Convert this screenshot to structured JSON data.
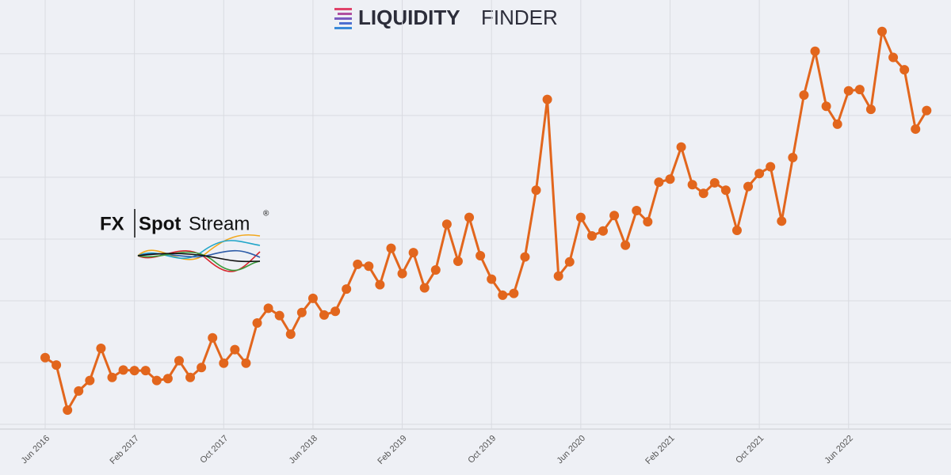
{
  "brand": {
    "bold": "LIQUIDITY",
    "light": "FINDER"
  },
  "logo": {
    "prefix": "FX",
    "bold": "Spot",
    "light": "Stream",
    "mark": "®"
  },
  "chart_data": {
    "type": "line",
    "color": "#e2661d",
    "grid": true,
    "categories": [
      "Jun 2016",
      null,
      null,
      null,
      null,
      null,
      null,
      null,
      "Feb 2017",
      null,
      null,
      null,
      null,
      null,
      null,
      null,
      "Oct 2017",
      null,
      null,
      null,
      null,
      null,
      null,
      null,
      "Jun 2018",
      null,
      null,
      null,
      null,
      null,
      null,
      null,
      "Feb 2019",
      null,
      null,
      null,
      null,
      null,
      null,
      null,
      "Oct 2019",
      null,
      null,
      null,
      null,
      null,
      null,
      null,
      "Jun 2020",
      null,
      null,
      null,
      null,
      null,
      null,
      null,
      "Feb 2021",
      null,
      null,
      null,
      null,
      null,
      null,
      null,
      "Oct 2021",
      null,
      null,
      null,
      null,
      null,
      null,
      null,
      "Jun 2022",
      null,
      null,
      null,
      null,
      null,
      null,
      null
    ],
    "values": [
      1.08,
      0.96,
      0.23,
      0.54,
      0.71,
      1.23,
      0.76,
      0.88,
      0.87,
      0.87,
      0.71,
      0.74,
      1.03,
      0.76,
      0.92,
      1.4,
      0.99,
      1.21,
      0.99,
      1.64,
      1.88,
      1.76,
      1.46,
      1.81,
      2.04,
      1.77,
      1.83,
      2.19,
      2.59,
      2.56,
      2.26,
      2.85,
      2.44,
      2.78,
      2.21,
      2.5,
      3.24,
      2.64,
      3.35,
      2.73,
      2.35,
      2.09,
      2.12,
      2.71,
      3.79,
      5.26,
      2.4,
      2.63,
      3.35,
      3.05,
      3.13,
      3.38,
      2.9,
      3.46,
      3.28,
      3.92,
      3.97,
      4.49,
      3.88,
      3.74,
      3.91,
      3.79,
      3.14,
      3.85,
      4.06,
      4.17,
      3.29,
      4.32,
      5.33,
      6.04,
      5.15,
      4.86,
      5.4,
      5.42,
      5.1,
      6.36,
      5.94,
      5.74,
      4.78,
      5.08
    ],
    "ylim": [
      0,
      6.87
    ],
    "yticks": [
      0,
      1,
      2,
      3,
      4,
      5,
      6
    ]
  }
}
